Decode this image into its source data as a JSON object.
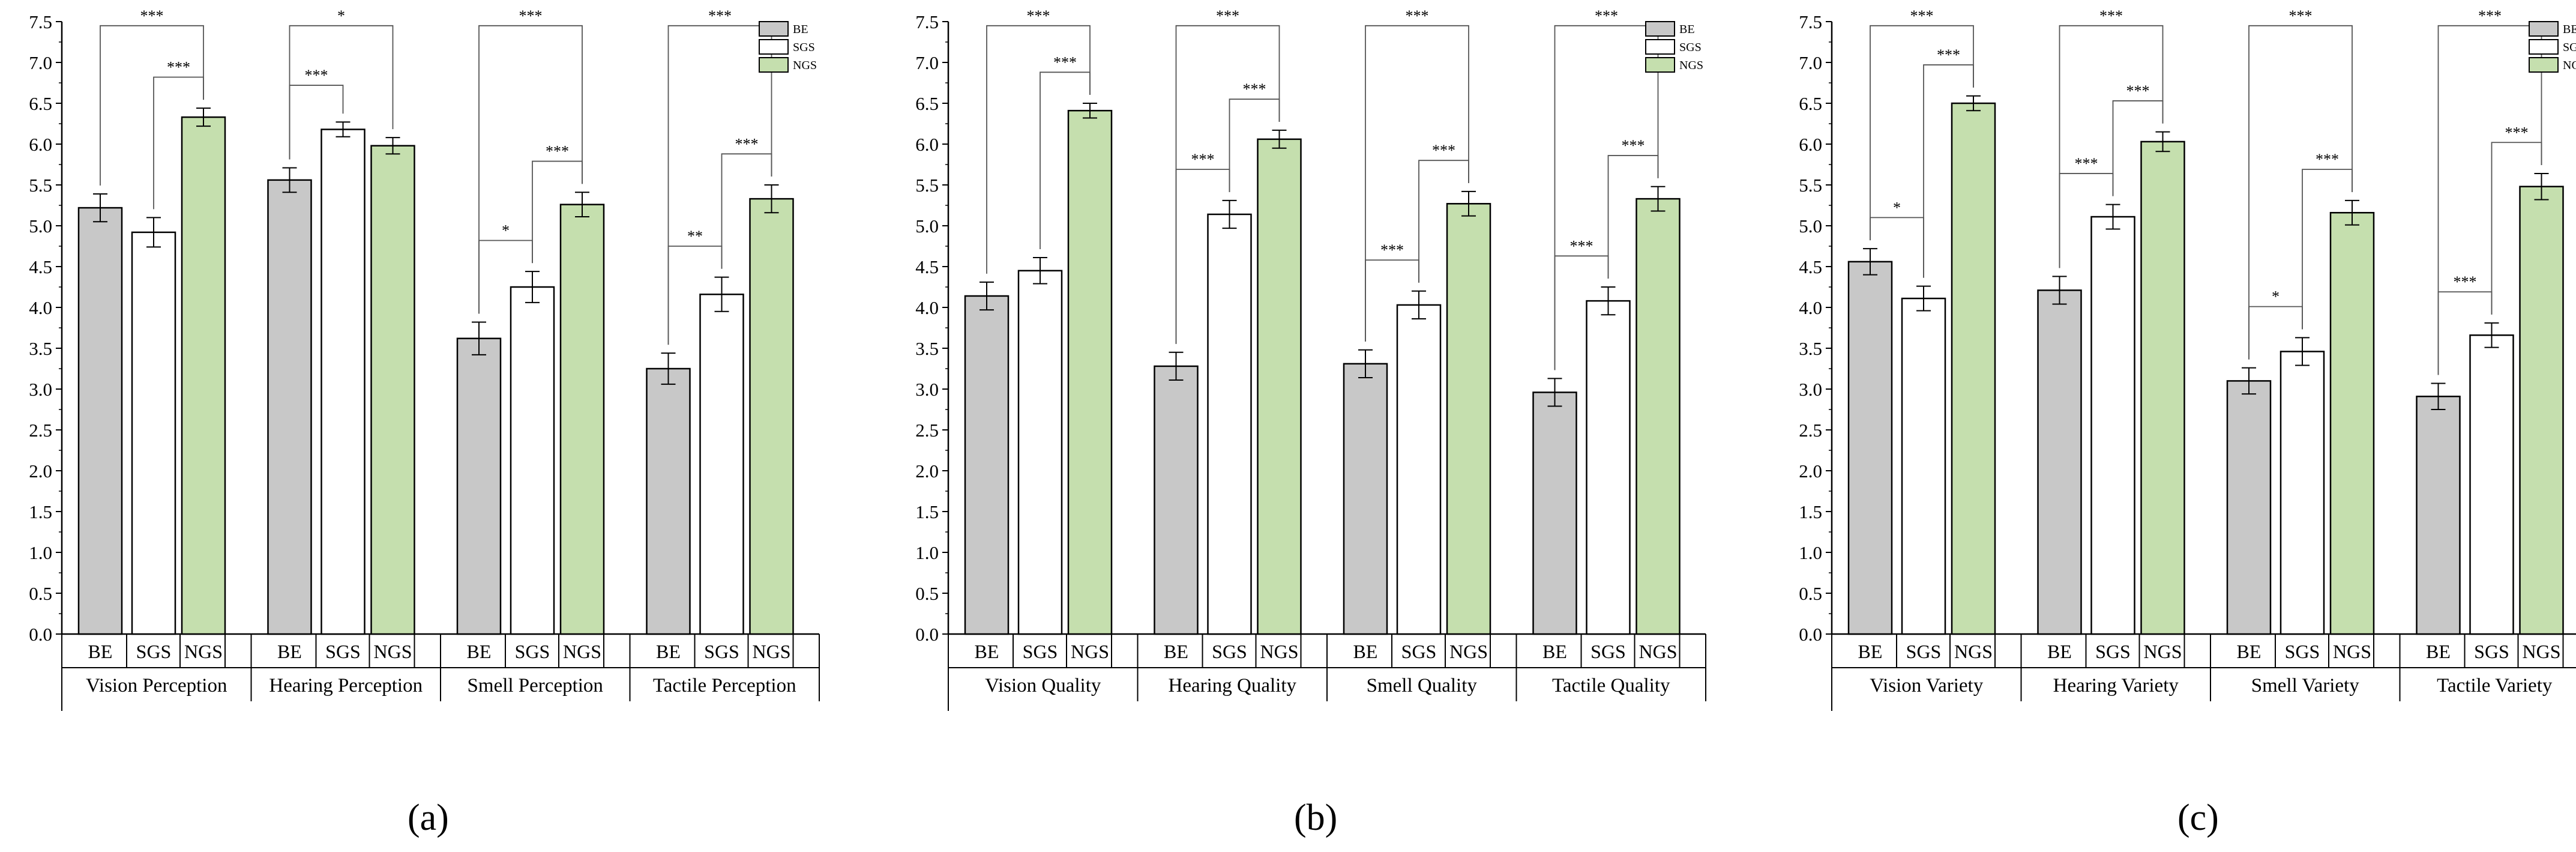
{
  "colors": {
    "BE": "#c8c8c8",
    "SGS": "#ffffff",
    "NGS": "#c5dfae",
    "stroke": "#000000",
    "bracket": "#555555"
  },
  "chart_data": [
    {
      "type": "bar",
      "panel_label": "(a)",
      "ylim": [
        0,
        7.5
      ],
      "yticks": [
        "0.0",
        "0.5",
        "1.0",
        "1.5",
        "2.0",
        "2.5",
        "3.0",
        "3.5",
        "4.0",
        "4.5",
        "5.0",
        "5.5",
        "6.0",
        "6.5",
        "7.0",
        "7.5"
      ],
      "legend": [
        "BE",
        "SGS",
        "NGS"
      ],
      "group_labels": [
        "BE",
        "SGS",
        "NGS"
      ],
      "groups": [
        {
          "name": "Vision Perception",
          "values": [
            5.22,
            4.92,
            6.33
          ],
          "errors": [
            0.17,
            0.18,
            0.11
          ],
          "brackets": [
            {
              "from": 0,
              "to": 2,
              "label": "***",
              "level": 1
            },
            {
              "from": 1,
              "to": 2,
              "label": "***",
              "level": 2
            }
          ]
        },
        {
          "name": "Hearing Perception",
          "values": [
            5.56,
            6.18,
            5.98
          ],
          "errors": [
            0.15,
            0.09,
            0.1
          ],
          "brackets": [
            {
              "from": 0,
              "to": 2,
              "label": "*",
              "level": 1
            },
            {
              "from": 0,
              "to": 1,
              "label": "***",
              "level": 2
            }
          ]
        },
        {
          "name": "Smell Perception",
          "values": [
            3.62,
            4.25,
            5.26
          ],
          "errors": [
            0.2,
            0.19,
            0.15
          ],
          "brackets": [
            {
              "from": 0,
              "to": 2,
              "label": "***",
              "level": 1
            },
            {
              "from": 1,
              "to": 2,
              "label": "***",
              "level": 2
            },
            {
              "from": 0,
              "to": 1,
              "label": "*",
              "level": 3
            }
          ]
        },
        {
          "name": "Tactile Perception",
          "values": [
            3.25,
            4.16,
            5.33
          ],
          "errors": [
            0.19,
            0.21,
            0.17
          ],
          "brackets": [
            {
              "from": 0,
              "to": 2,
              "label": "***",
              "level": 1
            },
            {
              "from": 1,
              "to": 2,
              "label": "***",
              "level": 2
            },
            {
              "from": 0,
              "to": 1,
              "label": "**",
              "level": 3
            }
          ]
        }
      ]
    },
    {
      "type": "bar",
      "panel_label": "(b)",
      "ylim": [
        0,
        7.5
      ],
      "yticks": [
        "0.0",
        "0.5",
        "1.0",
        "1.5",
        "2.0",
        "2.5",
        "3.0",
        "3.5",
        "4.0",
        "4.5",
        "5.0",
        "5.5",
        "6.0",
        "6.5",
        "7.0",
        "7.5"
      ],
      "legend": [
        "BE",
        "SGS",
        "NGS"
      ],
      "group_labels": [
        "BE",
        "SGS",
        "NGS"
      ],
      "groups": [
        {
          "name": "Vision Quality",
          "values": [
            4.14,
            4.45,
            6.41
          ],
          "errors": [
            0.17,
            0.16,
            0.09
          ],
          "brackets": [
            {
              "from": 0,
              "to": 2,
              "label": "***",
              "level": 1
            },
            {
              "from": 1,
              "to": 2,
              "label": "***",
              "level": 2
            }
          ]
        },
        {
          "name": "Hearing Quality",
          "values": [
            3.28,
            5.14,
            6.06
          ],
          "errors": [
            0.17,
            0.17,
            0.11
          ],
          "brackets": [
            {
              "from": 0,
              "to": 2,
              "label": "***",
              "level": 1
            },
            {
              "from": 1,
              "to": 2,
              "label": "***",
              "level": 2
            },
            {
              "from": 0,
              "to": 1,
              "label": "***",
              "level": 3
            }
          ]
        },
        {
          "name": "Smell Quality",
          "values": [
            3.31,
            4.03,
            5.27
          ],
          "errors": [
            0.17,
            0.17,
            0.15
          ],
          "brackets": [
            {
              "from": 0,
              "to": 2,
              "label": "***",
              "level": 1
            },
            {
              "from": 1,
              "to": 2,
              "label": "***",
              "level": 2
            },
            {
              "from": 0,
              "to": 1,
              "label": "***",
              "level": 3
            }
          ]
        },
        {
          "name": "Tactile Quality",
          "values": [
            2.96,
            4.08,
            5.33
          ],
          "errors": [
            0.17,
            0.17,
            0.15
          ],
          "brackets": [
            {
              "from": 0,
              "to": 2,
              "label": "***",
              "level": 1
            },
            {
              "from": 1,
              "to": 2,
              "label": "***",
              "level": 2
            },
            {
              "from": 0,
              "to": 1,
              "label": "***",
              "level": 3
            }
          ]
        }
      ]
    },
    {
      "type": "bar",
      "panel_label": "(c)",
      "ylim": [
        0,
        7.5
      ],
      "yticks": [
        "0.0",
        "0.5",
        "1.0",
        "1.5",
        "2.0",
        "2.5",
        "3.0",
        "3.5",
        "4.0",
        "4.5",
        "5.0",
        "5.5",
        "6.0",
        "6.5",
        "7.0",
        "7.5"
      ],
      "legend": [
        "BE",
        "SGS",
        "NGS"
      ],
      "group_labels": [
        "BE",
        "SGS",
        "NGS"
      ],
      "groups": [
        {
          "name": "Vision Variety",
          "values": [
            4.56,
            4.11,
            6.5
          ],
          "errors": [
            0.16,
            0.15,
            0.09
          ],
          "brackets": [
            {
              "from": 0,
              "to": 2,
              "label": "***",
              "level": 1
            },
            {
              "from": 1,
              "to": 2,
              "label": "***",
              "level": 2
            },
            {
              "from": 0,
              "to": 1,
              "label": "*",
              "level": 3
            }
          ]
        },
        {
          "name": "Hearing Variety",
          "values": [
            4.21,
            5.11,
            6.03
          ],
          "errors": [
            0.17,
            0.15,
            0.12
          ],
          "brackets": [
            {
              "from": 0,
              "to": 2,
              "label": "***",
              "level": 1
            },
            {
              "from": 1,
              "to": 2,
              "label": "***",
              "level": 2
            },
            {
              "from": 0,
              "to": 1,
              "label": "***",
              "level": 3
            }
          ]
        },
        {
          "name": "Smell Variety",
          "values": [
            3.1,
            3.46,
            5.16
          ],
          "errors": [
            0.16,
            0.17,
            0.15
          ],
          "brackets": [
            {
              "from": 0,
              "to": 2,
              "label": "***",
              "level": 1
            },
            {
              "from": 1,
              "to": 2,
              "label": "***",
              "level": 2
            },
            {
              "from": 0,
              "to": 1,
              "label": "*",
              "level": 3
            }
          ]
        },
        {
          "name": "Tactile Variety",
          "values": [
            2.91,
            3.66,
            5.48
          ],
          "errors": [
            0.16,
            0.15,
            0.16
          ],
          "brackets": [
            {
              "from": 0,
              "to": 2,
              "label": "***",
              "level": 1
            },
            {
              "from": 1,
              "to": 2,
              "label": "***",
              "level": 2
            },
            {
              "from": 0,
              "to": 1,
              "label": "***",
              "level": 3
            }
          ]
        }
      ]
    }
  ]
}
